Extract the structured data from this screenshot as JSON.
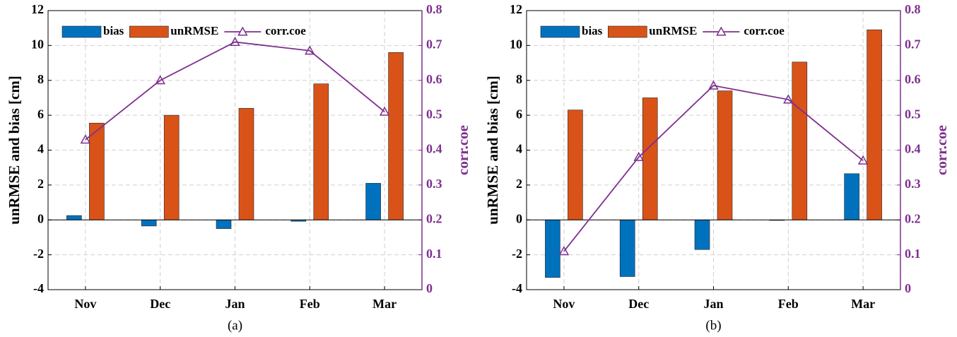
{
  "chart_data": [
    {
      "type": "bar_line",
      "caption": "(a)",
      "ylabel": "unRMSE and bias [cm]",
      "y2label": "corr.coe",
      "categories": [
        "Nov",
        "Dec",
        "Jan",
        "Feb",
        "Mar"
      ],
      "series": [
        {
          "name": "bias",
          "type": "bar",
          "color": "#0072BD",
          "values": [
            0.25,
            -0.35,
            -0.5,
            -0.08,
            2.1
          ]
        },
        {
          "name": "unRMSE",
          "type": "bar",
          "color": "#D95319",
          "values": [
            5.55,
            6.0,
            6.4,
            7.8,
            9.6
          ]
        },
        {
          "name": "corr.coe",
          "type": "line",
          "axis": "y2",
          "color": "#7E2F8E",
          "marker": "triangle",
          "values": [
            0.43,
            0.6,
            0.71,
            0.685,
            0.51
          ]
        }
      ],
      "ylim": [
        -4,
        12
      ],
      "yticks": [
        -4,
        -2,
        0,
        2,
        4,
        6,
        8,
        10,
        12
      ],
      "y2lim": [
        0,
        0.8
      ],
      "y2ticks": [
        0,
        0.1,
        0.2,
        0.3,
        0.4,
        0.5,
        0.6,
        0.7,
        0.8
      ],
      "grid": true,
      "legend": "top-left"
    },
    {
      "type": "bar_line",
      "caption": "(b)",
      "ylabel": "unRMSE and bias [cm]",
      "y2label": "corr.coe",
      "categories": [
        "Nov",
        "Dec",
        "Jan",
        "Feb",
        "Mar"
      ],
      "series": [
        {
          "name": "bias",
          "type": "bar",
          "color": "#0072BD",
          "values": [
            -3.3,
            -3.25,
            -1.7,
            -0.03,
            2.65
          ]
        },
        {
          "name": "unRMSE",
          "type": "bar",
          "color": "#D95319",
          "values": [
            6.3,
            7.0,
            7.4,
            9.05,
            10.9
          ]
        },
        {
          "name": "corr.coe",
          "type": "line",
          "axis": "y2",
          "color": "#7E2F8E",
          "marker": "triangle",
          "values": [
            0.11,
            0.38,
            0.585,
            0.545,
            0.37
          ]
        }
      ],
      "ylim": [
        -4,
        12
      ],
      "yticks": [
        -4,
        -2,
        0,
        2,
        4,
        6,
        8,
        10,
        12
      ],
      "y2lim": [
        0,
        0.8
      ],
      "y2ticks": [
        0,
        0.1,
        0.2,
        0.3,
        0.4,
        0.5,
        0.6,
        0.7,
        0.8
      ],
      "grid": true,
      "legend": "top-left"
    }
  ]
}
